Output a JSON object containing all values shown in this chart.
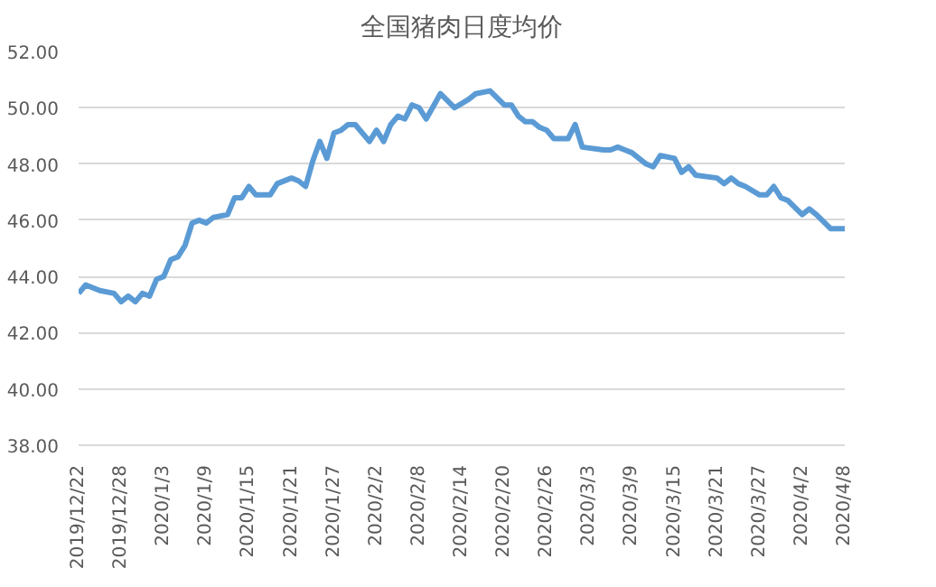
{
  "chart_data": {
    "type": "line",
    "title": "全国猪肉日度均价",
    "x": [
      "2019-12-22",
      "2019-12-23",
      "2019-12-25",
      "2019-12-27",
      "2019-12-28",
      "2019-12-29",
      "2019-12-30",
      "2019-12-31",
      "2020-01-01",
      "2020-01-02",
      "2020-01-03",
      "2020-01-04",
      "2020-01-05",
      "2020-01-06",
      "2020-01-07",
      "2020-01-08",
      "2020-01-09",
      "2020-01-10",
      "2020-01-12",
      "2020-01-13",
      "2020-01-14",
      "2020-01-15",
      "2020-01-16",
      "2020-01-18",
      "2020-01-19",
      "2020-01-21",
      "2020-01-22",
      "2020-01-23",
      "2020-01-24",
      "2020-01-25",
      "2020-01-26",
      "2020-01-27",
      "2020-01-28",
      "2020-01-29",
      "2020-01-30",
      "2020-02-01",
      "2020-02-02",
      "2020-02-03",
      "2020-02-04",
      "2020-02-05",
      "2020-02-06",
      "2020-02-07",
      "2020-02-08",
      "2020-02-09",
      "2020-02-11",
      "2020-02-13",
      "2020-02-15",
      "2020-02-16",
      "2020-02-18",
      "2020-02-20",
      "2020-02-21",
      "2020-02-22",
      "2020-02-23",
      "2020-02-24",
      "2020-02-25",
      "2020-02-26",
      "2020-02-27",
      "2020-02-29",
      "2020-03-01",
      "2020-03-02",
      "2020-03-05",
      "2020-03-06",
      "2020-03-07",
      "2020-03-08",
      "2020-03-09",
      "2020-03-11",
      "2020-03-12",
      "2020-03-13",
      "2020-03-15",
      "2020-03-16",
      "2020-03-17",
      "2020-03-18",
      "2020-03-21",
      "2020-03-22",
      "2020-03-23",
      "2020-03-24",
      "2020-03-25",
      "2020-03-27",
      "2020-03-28",
      "2020-03-29",
      "2020-03-30",
      "2020-03-31",
      "2020-04-02",
      "2020-04-03",
      "2020-04-04",
      "2020-04-06",
      "2020-04-07",
      "2020-04-08"
    ],
    "series": [
      {
        "color": "#5b9bd5",
        "values": [
          43.4,
          43.7,
          43.5,
          43.4,
          43.1,
          43.3,
          43.1,
          43.4,
          43.3,
          43.9,
          44.0,
          44.6,
          44.7,
          45.1,
          45.9,
          46.0,
          45.9,
          46.1,
          46.2,
          46.8,
          46.8,
          47.2,
          46.9,
          46.9,
          47.3,
          47.5,
          47.4,
          47.2,
          48.1,
          48.8,
          48.2,
          49.1,
          49.2,
          49.4,
          49.4,
          48.8,
          49.2,
          48.8,
          49.4,
          49.7,
          49.6,
          50.1,
          50.0,
          49.6,
          50.5,
          50.0,
          50.3,
          50.5,
          50.6,
          50.1,
          50.1,
          49.7,
          49.5,
          49.5,
          49.3,
          49.2,
          48.9,
          48.9,
          49.4,
          48.6,
          48.5,
          48.5,
          48.6,
          48.5,
          48.4,
          48.0,
          47.9,
          48.3,
          48.2,
          47.7,
          47.9,
          47.6,
          47.5,
          47.3,
          47.5,
          47.3,
          47.2,
          46.9,
          46.9,
          47.2,
          46.8,
          46.7,
          46.2,
          46.4,
          46.2,
          45.7,
          45.7,
          45.7
        ]
      }
    ],
    "xlim": [
      "2019-12-22",
      "2020-04-08"
    ],
    "xticks": [
      {
        "value": "2019-12-22",
        "label": "2019/12/22"
      },
      {
        "value": "2019-12-28",
        "label": "2019/12/28"
      },
      {
        "value": "2020-01-03",
        "label": "2020/1/3"
      },
      {
        "value": "2020-01-09",
        "label": "2020/1/9"
      },
      {
        "value": "2020-01-15",
        "label": "2020/1/15"
      },
      {
        "value": "2020-01-21",
        "label": "2020/1/21"
      },
      {
        "value": "2020-01-27",
        "label": "2020/1/27"
      },
      {
        "value": "2020-02-02",
        "label": "2020/2/2"
      },
      {
        "value": "2020-02-08",
        "label": "2020/2/8"
      },
      {
        "value": "2020-02-14",
        "label": "2020/2/14"
      },
      {
        "value": "2020-02-20",
        "label": "2020/2/20"
      },
      {
        "value": "2020-02-26",
        "label": "2020/2/26"
      },
      {
        "value": "2020-03-03",
        "label": "2020/3/3"
      },
      {
        "value": "2020-03-09",
        "label": "2020/3/9"
      },
      {
        "value": "2020-03-15",
        "label": "2020/3/15"
      },
      {
        "value": "2020-03-21",
        "label": "2020/3/21"
      },
      {
        "value": "2020-03-27",
        "label": "2020/3/27"
      },
      {
        "value": "2020-04-02",
        "label": "2020/4/2"
      },
      {
        "value": "2020-04-08",
        "label": "2020/4/8"
      }
    ],
    "ylim": [
      38,
      52
    ],
    "yticks": [
      {
        "value": 38,
        "label": "38.00"
      },
      {
        "value": 40,
        "label": "40.00"
      },
      {
        "value": 42,
        "label": "42.00"
      },
      {
        "value": 44,
        "label": "44.00"
      },
      {
        "value": 46,
        "label": "46.00"
      },
      {
        "value": 48,
        "label": "48.00"
      },
      {
        "value": 50,
        "label": "50.00"
      },
      {
        "value": 52,
        "label": "52.00"
      }
    ],
    "grid": "y",
    "marker": "none",
    "line_style": "solid"
  }
}
